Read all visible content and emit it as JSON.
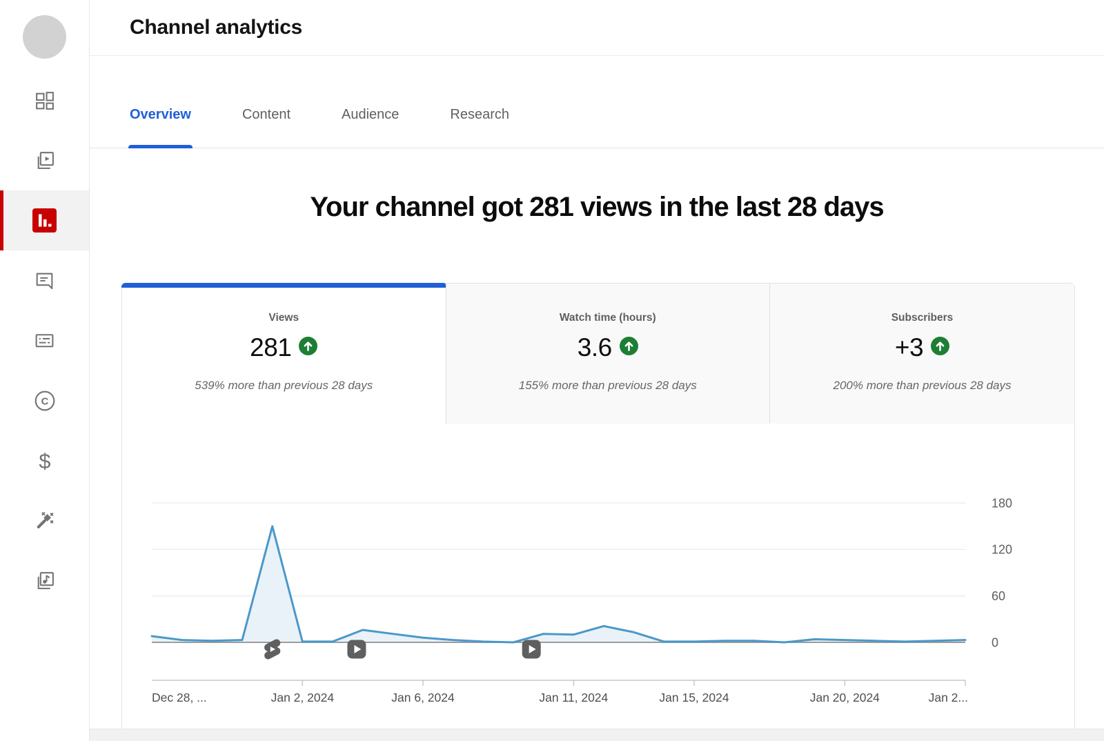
{
  "app": {
    "title": "Channel analytics"
  },
  "tabs": [
    {
      "label": "Overview",
      "active": true
    },
    {
      "label": "Content",
      "active": false
    },
    {
      "label": "Audience",
      "active": false
    },
    {
      "label": "Research",
      "active": false
    }
  ],
  "headline": "Your channel got 281 views in the last 28 days",
  "metrics": [
    {
      "label": "Views",
      "value": "281",
      "delta": "539% more than previous 28 days",
      "trend": "up",
      "active": true
    },
    {
      "label": "Watch time (hours)",
      "value": "3.6",
      "delta": "155% more than previous 28 days",
      "trend": "up",
      "active": false
    },
    {
      "label": "Subscribers",
      "value": "+3",
      "delta": "200% more than previous 28 days",
      "trend": "up",
      "active": false
    }
  ],
  "sidebar": {
    "items": [
      "dashboard",
      "content",
      "analytics",
      "comments",
      "subtitles",
      "copyright",
      "earn",
      "customize",
      "audio-library"
    ],
    "active": "analytics"
  },
  "colors": {
    "accent_blue": "#1f5fd8",
    "positive_green": "#1e7e34",
    "active_red": "#c80000",
    "chart_line": "#4a98c9",
    "chart_fill": "#e9f2f9",
    "grid_line": "#ebebeb",
    "zero_line": "#9b9b9b",
    "axis_line": "#c9c9c9"
  },
  "chart_data": {
    "type": "area",
    "title": "Daily views, last 28 days",
    "series_name": "Views",
    "x": [
      "Dec 28",
      "Dec 29",
      "Dec 30",
      "Dec 31",
      "Jan 1",
      "Jan 2",
      "Jan 3",
      "Jan 4",
      "Jan 5",
      "Jan 6",
      "Jan 7",
      "Jan 8",
      "Jan 9",
      "Jan 10",
      "Jan 11",
      "Jan 12",
      "Jan 13",
      "Jan 14",
      "Jan 15",
      "Jan 16",
      "Jan 17",
      "Jan 18",
      "Jan 19",
      "Jan 20",
      "Jan 21",
      "Jan 22",
      "Jan 23",
      "Jan 24"
    ],
    "values": [
      8,
      3,
      2,
      3,
      150,
      1,
      1,
      16,
      11,
      6,
      3,
      1,
      0,
      11,
      10,
      21,
      13,
      1,
      1,
      2,
      2,
      0,
      4,
      3,
      2,
      1,
      2,
      3
    ],
    "ylim": [
      0,
      200
    ],
    "yticks": [
      180,
      120,
      60,
      0
    ],
    "xticks": [
      {
        "label": "Dec 28, ...",
        "day": 0,
        "align": "start"
      },
      {
        "label": "Jan 2, 2024",
        "day": 5
      },
      {
        "label": "Jan 6, 2024",
        "day": 9
      },
      {
        "label": "Jan 11, 2024",
        "day": 14
      },
      {
        "label": "Jan 15, 2024",
        "day": 18
      },
      {
        "label": "Jan 20, 2024",
        "day": 23
      },
      {
        "label": "Jan 2...",
        "day": 27,
        "align": "end"
      }
    ],
    "grid": true,
    "legend": false,
    "markers": [
      {
        "type": "shorts",
        "day": 4
      },
      {
        "type": "video",
        "day": 6.8
      },
      {
        "type": "video",
        "day": 12.6
      }
    ]
  }
}
